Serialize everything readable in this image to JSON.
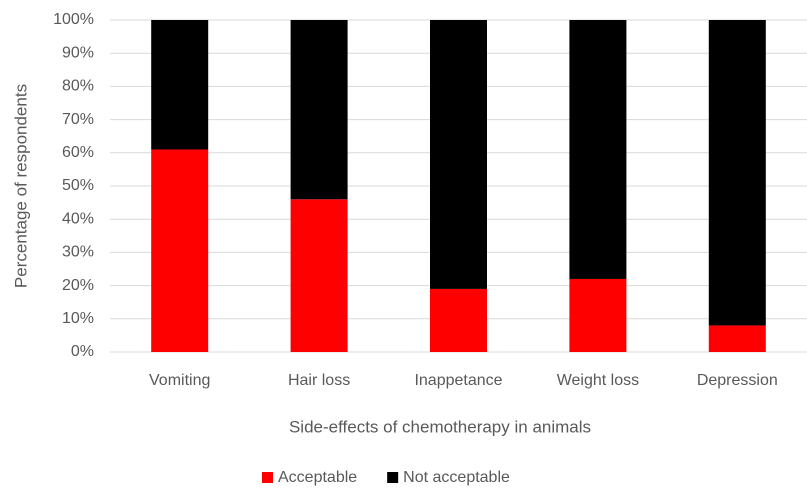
{
  "chart_data": {
    "type": "stacked_bar",
    "categories": [
      "Vomiting",
      "Hair loss",
      "Inappetance",
      "Weight loss",
      "Depression"
    ],
    "series": [
      {
        "name": "Acceptable",
        "color": "#ff0000",
        "values": [
          61,
          46,
          19,
          22,
          8
        ]
      },
      {
        "name": "Not acceptable",
        "color": "#000000",
        "values": [
          39,
          54,
          81,
          78,
          92
        ]
      }
    ],
    "xlabel": "Side-effects of chemotherapy in animals",
    "ylabel": "Percentage of respondents",
    "ylim": [
      0,
      100
    ],
    "yticks": [
      {
        "value": 0,
        "label": "0%"
      },
      {
        "value": 10,
        "label": "10%"
      },
      {
        "value": 20,
        "label": "20%"
      },
      {
        "value": 30,
        "label": "30%"
      },
      {
        "value": 40,
        "label": "40%"
      },
      {
        "value": 50,
        "label": "50%"
      },
      {
        "value": 60,
        "label": "60%"
      },
      {
        "value": 70,
        "label": "70%"
      },
      {
        "value": 80,
        "label": "80%"
      },
      {
        "value": 90,
        "label": "90%"
      },
      {
        "value": 100,
        "label": "100%"
      }
    ],
    "grid": true,
    "legend": "bottom"
  }
}
